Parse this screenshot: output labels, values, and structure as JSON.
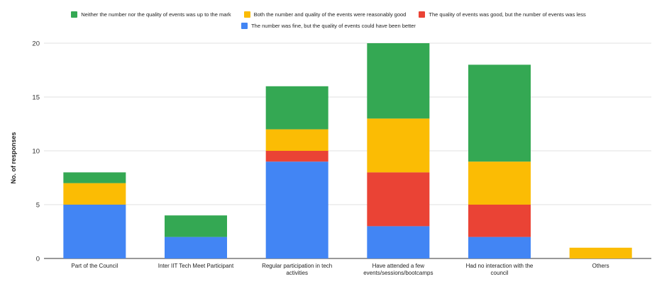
{
  "chart_data": {
    "type": "bar",
    "stacked": true,
    "title": "",
    "xlabel": "",
    "ylabel": "No. of responses",
    "ylim": [
      0,
      20
    ],
    "yticks": [
      0,
      5,
      10,
      15,
      20
    ],
    "grid": true,
    "legend_position": "top",
    "categories": [
      [
        "Part of the Council"
      ],
      [
        "Inter IIT Tech Meet Participant"
      ],
      [
        "Regular participation in tech",
        "activities"
      ],
      [
        "Have attended a few",
        "events/sessions/bootcamps"
      ],
      [
        "Had no interaction with the",
        "council"
      ],
      [
        "Others"
      ]
    ],
    "series": [
      {
        "name": "The number was fine, but the quality of events could have been better",
        "color": "#4285f4",
        "values": [
          5,
          2,
          9,
          3,
          2,
          0
        ]
      },
      {
        "name": "The quality of events was good, but the number of events was less",
        "color": "#ea4335",
        "values": [
          0,
          0,
          1,
          5,
          3,
          0
        ]
      },
      {
        "name": "Both the number and quality of the events were reasonably good",
        "color": "#fbbc04",
        "values": [
          2,
          0,
          2,
          5,
          4,
          1
        ]
      },
      {
        "name": "Neither the number nor the quality of events was up to the mark",
        "color": "#34a853",
        "values": [
          1,
          2,
          4,
          7,
          9,
          0
        ]
      }
    ],
    "legend_rows": [
      [
        3,
        2,
        1
      ],
      [
        0
      ]
    ]
  }
}
